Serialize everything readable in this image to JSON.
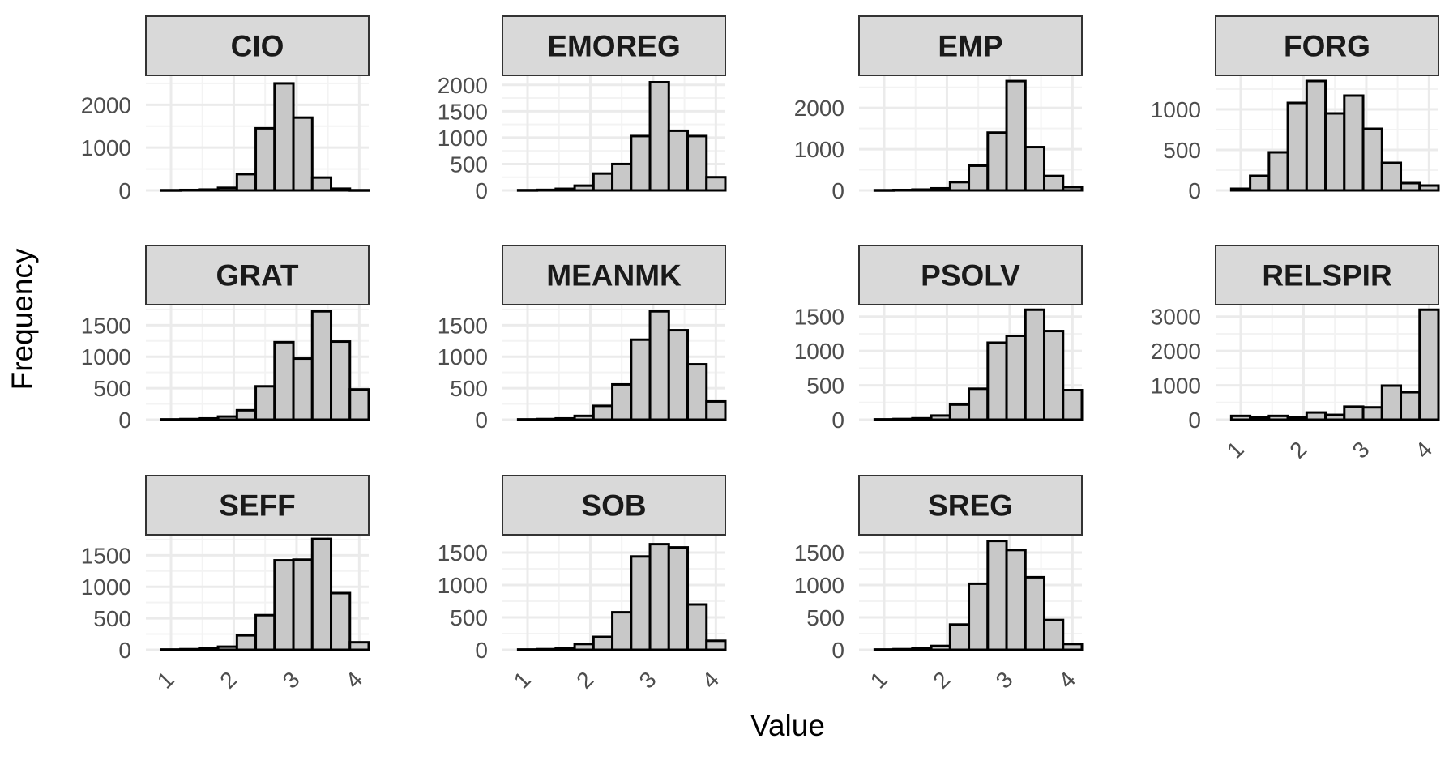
{
  "chart_data": {
    "type": "bar",
    "subtype": "faceted-histogram",
    "xlabel": "Value",
    "ylabel": "Frequency",
    "xlim": [
      0.6,
      4.15
    ],
    "x_ticks": [
      1,
      2,
      3,
      4
    ],
    "bin_width": 0.3,
    "bin_centers": [
      1.0,
      1.3,
      1.6,
      1.9,
      2.2,
      2.5,
      2.8,
      3.1,
      3.4,
      3.7,
      4.0
    ],
    "colors": {
      "bar_fill": "#c8c8c8",
      "bar_stroke": "#000000",
      "strip_fill": "#d9d9d9",
      "grid": "#ebebeb"
    },
    "facets": [
      {
        "name": "CIO",
        "ylim": [
          0,
          2650
        ],
        "y_ticks": [
          0,
          1000,
          2000
        ],
        "tick_labels": [
          "0",
          "1000",
          "2000"
        ],
        "values": [
          5,
          10,
          20,
          60,
          380,
          1450,
          2500,
          1700,
          300,
          40,
          5
        ]
      },
      {
        "name": "EMOREG",
        "ylim": [
          0,
          2150
        ],
        "y_ticks": [
          0,
          500,
          1000,
          1500,
          2000
        ],
        "tick_labels": [
          "0",
          "500",
          "1000",
          "1500",
          "2000"
        ],
        "values": [
          5,
          10,
          30,
          90,
          320,
          500,
          1030,
          2050,
          1130,
          1030,
          250
        ]
      },
      {
        "name": "EMP",
        "ylim": [
          0,
          2750
        ],
        "y_ticks": [
          0,
          1000,
          2000
        ],
        "tick_labels": [
          "0",
          "1000",
          "2000"
        ],
        "values": [
          5,
          10,
          20,
          50,
          200,
          600,
          1400,
          2650,
          1050,
          350,
          80
        ]
      },
      {
        "name": "FORG",
        "ylim": [
          0,
          1400
        ],
        "y_ticks": [
          0,
          500,
          1000
        ],
        "tick_labels": [
          "0",
          "500",
          "1000"
        ],
        "values": [
          20,
          180,
          470,
          1080,
          1350,
          950,
          1170,
          760,
          340,
          90,
          60
        ]
      },
      {
        "name": "GRAT",
        "ylim": [
          0,
          1800
        ],
        "y_ticks": [
          0,
          500,
          1000,
          1500
        ],
        "tick_labels": [
          "0",
          "500",
          "1000",
          "1500"
        ],
        "values": [
          5,
          10,
          20,
          50,
          150,
          530,
          1230,
          970,
          1720,
          1240,
          480
        ]
      },
      {
        "name": "MEANMK",
        "ylim": [
          0,
          1800
        ],
        "y_ticks": [
          0,
          500,
          1000,
          1500
        ],
        "tick_labels": [
          "0",
          "500",
          "1000",
          "1500"
        ],
        "values": [
          5,
          10,
          20,
          60,
          220,
          560,
          1270,
          1720,
          1420,
          880,
          290
        ]
      },
      {
        "name": "PSOLV",
        "ylim": [
          0,
          1650
        ],
        "y_ticks": [
          0,
          500,
          1000,
          1500
        ],
        "tick_labels": [
          "0",
          "500",
          "1000",
          "1500"
        ],
        "values": [
          5,
          10,
          20,
          60,
          220,
          450,
          1120,
          1220,
          1600,
          1290,
          430
        ]
      },
      {
        "name": "RELSPIR",
        "ylim": [
          0,
          3300
        ],
        "y_ticks": [
          0,
          1000,
          2000,
          3000
        ],
        "tick_labels": [
          "0",
          "1000",
          "2000",
          "3000"
        ],
        "values": [
          110,
          60,
          110,
          60,
          210,
          140,
          380,
          360,
          990,
          800,
          3200
        ]
      },
      {
        "name": "SEFF",
        "ylim": [
          0,
          1800
        ],
        "y_ticks": [
          0,
          500,
          1000,
          1500
        ],
        "tick_labels": [
          "0",
          "500",
          "1000",
          "1500"
        ],
        "values": [
          5,
          10,
          20,
          50,
          230,
          550,
          1420,
          1430,
          1760,
          900,
          120
        ]
      },
      {
        "name": "SOB",
        "ylim": [
          0,
          1750
        ],
        "y_ticks": [
          0,
          500,
          1000,
          1500
        ],
        "tick_labels": [
          "0",
          "500",
          "1000",
          "1500"
        ],
        "values": [
          5,
          10,
          20,
          90,
          200,
          580,
          1440,
          1630,
          1580,
          700,
          140
        ]
      },
      {
        "name": "SREG",
        "ylim": [
          0,
          1750
        ],
        "y_ticks": [
          0,
          500,
          1000,
          1500
        ],
        "tick_labels": [
          "0",
          "500",
          "1000",
          "1500"
        ],
        "values": [
          5,
          10,
          20,
          60,
          390,
          1020,
          1680,
          1540,
          1120,
          460,
          90
        ]
      }
    ]
  }
}
